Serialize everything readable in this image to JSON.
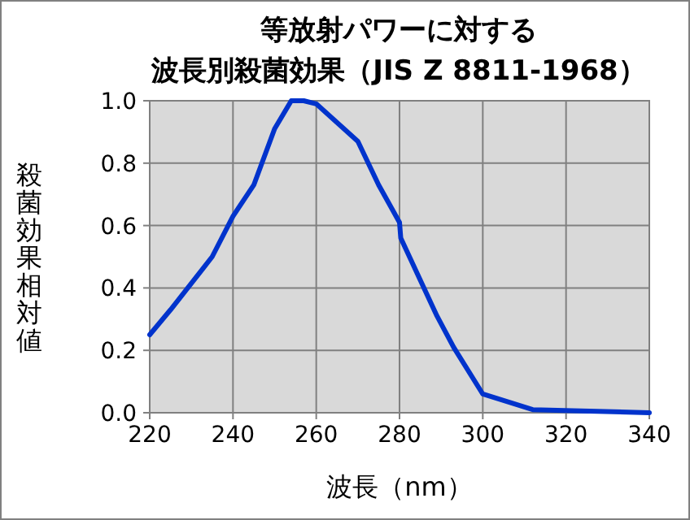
{
  "chart_data": {
    "type": "line",
    "title": "等放射パワーに対する",
    "subtitle": "波長別殺菌効果（JIS Z 8811-1968）",
    "xlabel": "波長（nm）",
    "ylabel": "殺菌効果相対値",
    "xlim": [
      220,
      340
    ],
    "xticks": [
      220,
      240,
      260,
      280,
      300,
      320,
      340
    ],
    "ylim": [
      0,
      1
    ],
    "yticks": [
      {
        "value": 0,
        "label": "0.0"
      },
      0.2,
      0.4,
      0.6,
      0.8,
      {
        "value": 1,
        "label": "1.0"
      }
    ],
    "grid": true,
    "series": [
      {
        "color": "#0033cc",
        "x": [
          220,
          225,
          235,
          240,
          245,
          250,
          254,
          257,
          260,
          270,
          275,
          280,
          280.3,
          289,
          293,
          300,
          312,
          340
        ],
        "values": [
          0.25,
          0.33,
          0.5,
          0.63,
          0.73,
          0.91,
          1.0,
          1.0,
          0.99,
          0.87,
          0.73,
          0.61,
          0.56,
          0.31,
          0.21,
          0.06,
          0.01,
          0.0
        ]
      }
    ]
  }
}
